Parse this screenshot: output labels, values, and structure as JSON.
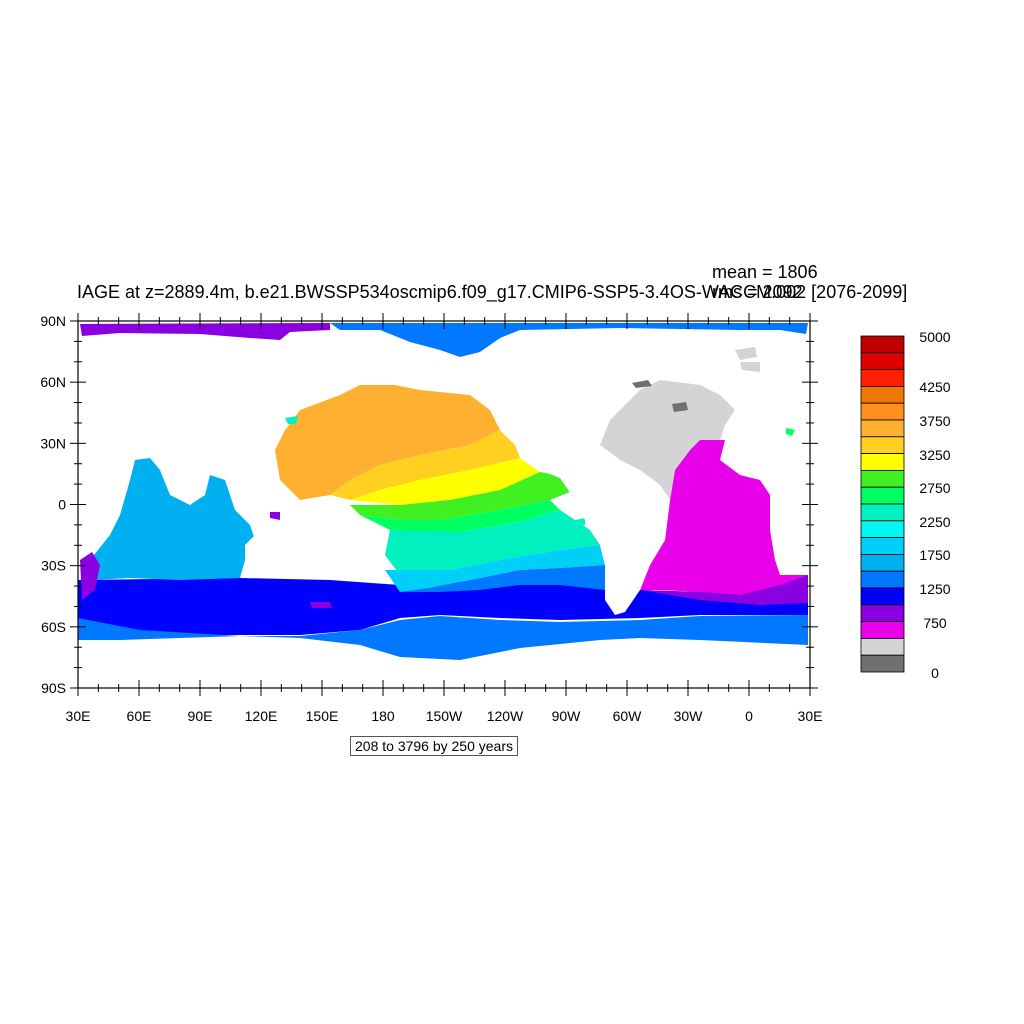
{
  "plot": {
    "title": "IAGE at z=2889.4m, b.e21.BWSSP534oscmip6.f09_g17.CMIP6-SSP5-3.4OS-WACCM.002 [2076-2099]",
    "mean_label": "mean = 1806",
    "rms_label": "rms = 2092",
    "contour_info": "208 to 3796 by 250 years"
  },
  "axes": {
    "lat_labels": [
      "90N",
      "60N",
      "30N",
      "0",
      "30S",
      "60S",
      "90S"
    ],
    "lon_labels": [
      "30E",
      "60E",
      "90E",
      "120E",
      "150E",
      "180",
      "150W",
      "120W",
      "90W",
      "60W",
      "30W",
      "0",
      "30E"
    ]
  },
  "colorbar": {
    "labels": [
      "5000",
      "4250",
      "3750",
      "3250",
      "2750",
      "2250",
      "1750",
      "1250",
      "750",
      "0"
    ],
    "colors": [
      "#c00000",
      "#e00000",
      "#ff2000",
      "#f07800",
      "#ff9020",
      "#ffb030",
      "#ffd020",
      "#ffff00",
      "#40f020",
      "#00ff60",
      "#00f0c0",
      "#00f8f0",
      "#00d0f8",
      "#00b0f0",
      "#0078ff",
      "#0000ff",
      "#8a00e0",
      "#e800e8",
      "#d4d4d4",
      "#707070"
    ]
  },
  "regions": {
    "pacific_north": "#ffb030",
    "pacific_mid": "#ffd020",
    "pacific_eq": "#ffff00",
    "pacific_green": "#40f020",
    "pacific_teal": "#00f0c0",
    "pacific_cyan": "#00d0f8",
    "indian": "#00b0f0",
    "southern_blue": "#0078ff",
    "southern_deep": "#0000ff",
    "atlantic": "#e800e8",
    "arctic_gray": "#d4d4d4",
    "arctic_purple": "#8a00e0"
  }
}
